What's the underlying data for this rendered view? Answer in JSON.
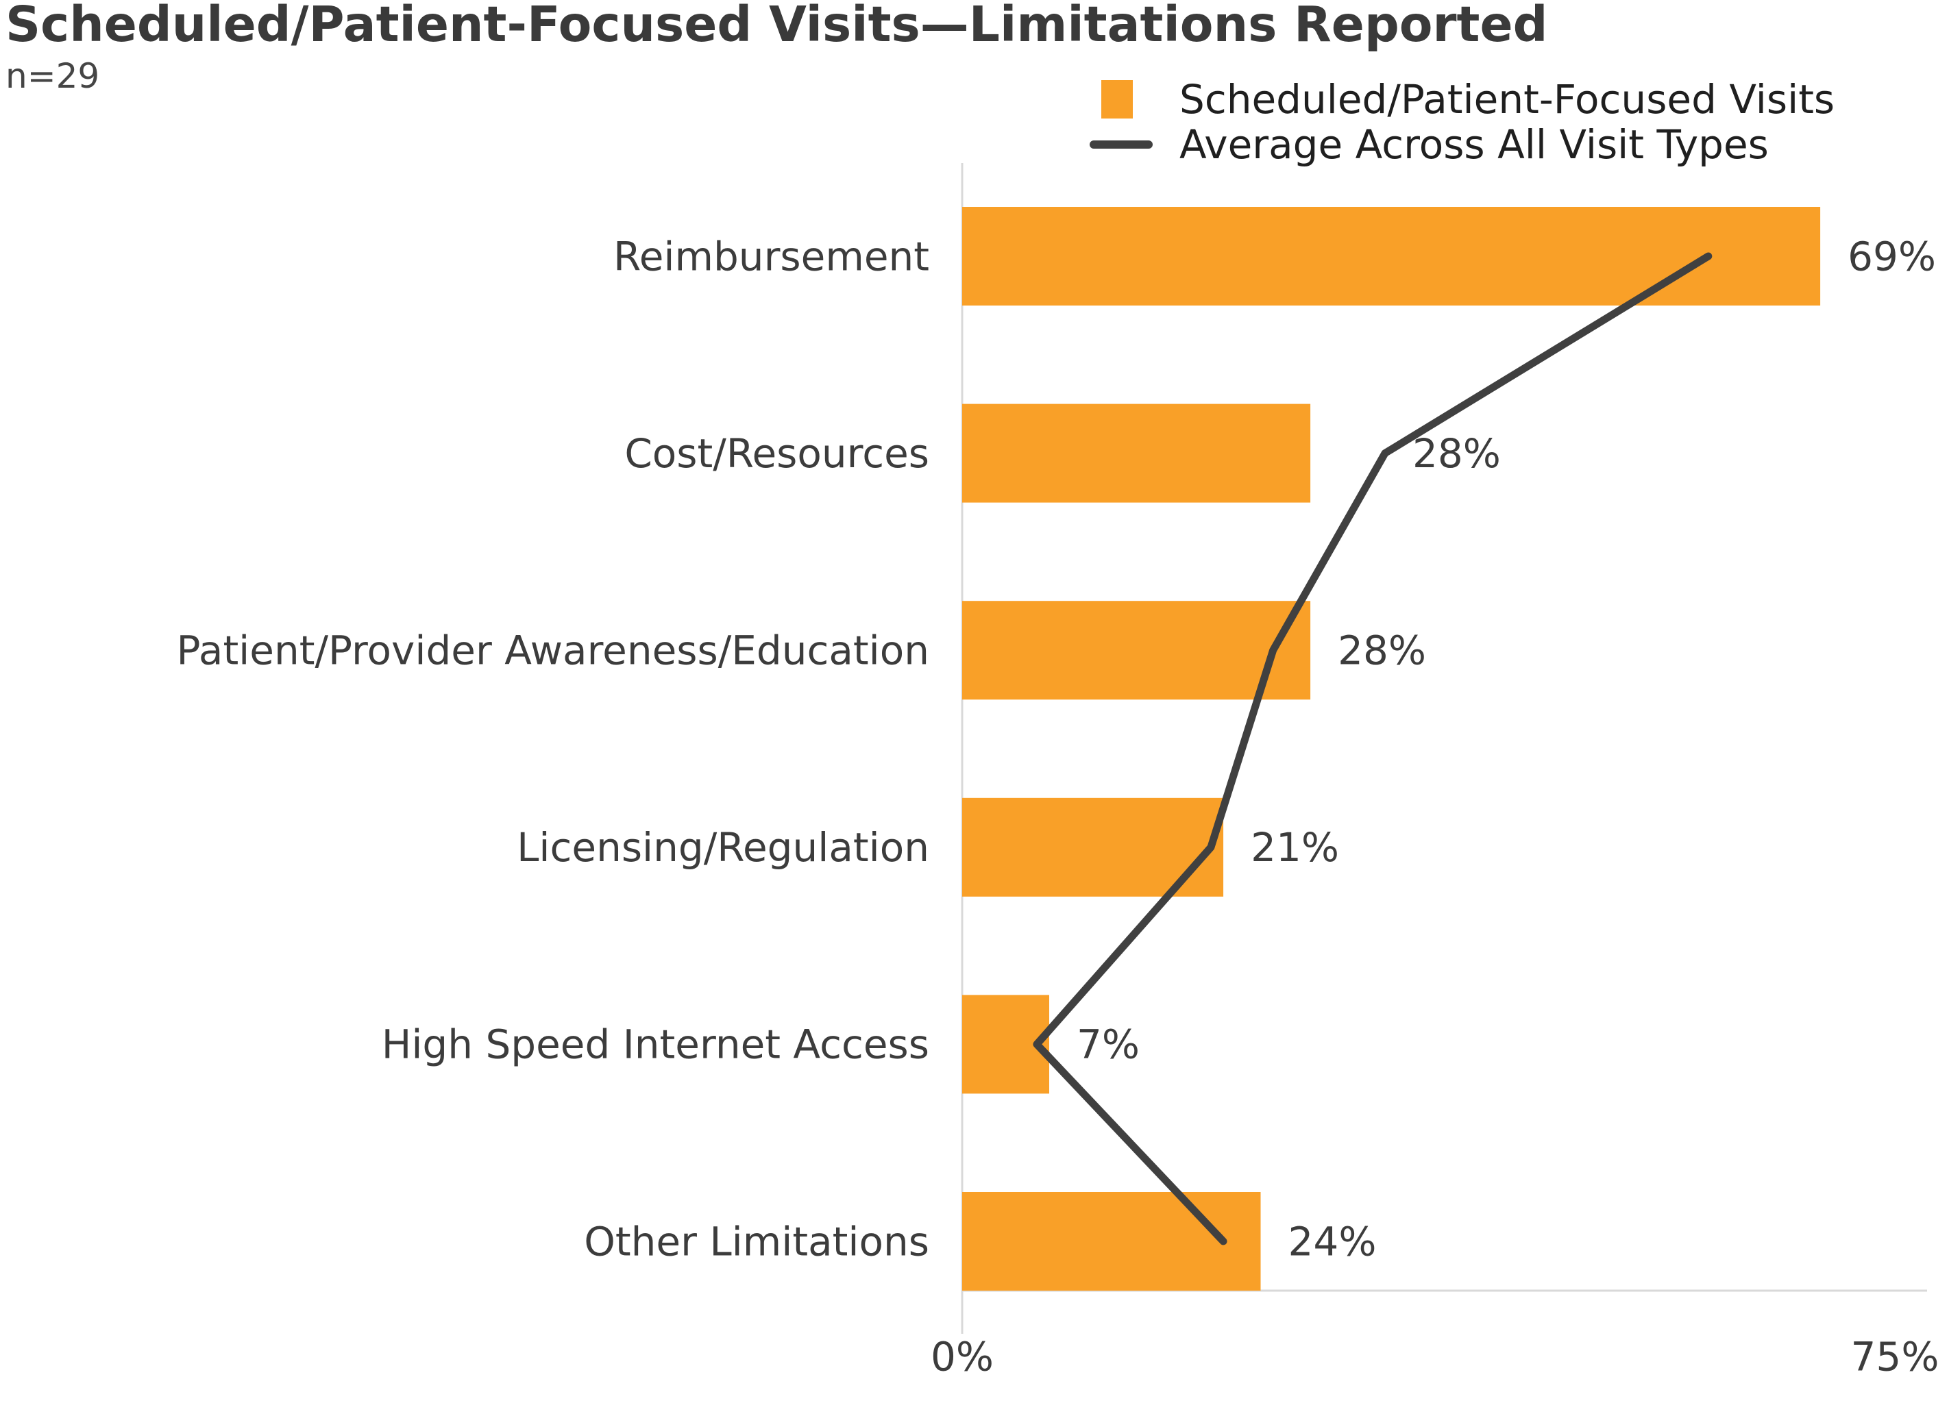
{
  "chart_data": {
    "type": "bar",
    "orientation": "horizontal",
    "title": "Scheduled/Patient-Focused Visits—Limitations Reported",
    "subtitle": "n=29",
    "categories": [
      "Reimbursement",
      "Cost/Resources",
      "Patient/Provider Awareness/Education",
      "Licensing/Regulation",
      "High Speed Internet Access",
      "Other Limitations"
    ],
    "series": [
      {
        "name": "Scheduled/Patient-Focused Visits",
        "type": "bar",
        "color": "#F9A028",
        "values": [
          69,
          28,
          28,
          21,
          7,
          24
        ],
        "labels": [
          "69%",
          "28%",
          "28%",
          "21%",
          "7%",
          "24%"
        ]
      },
      {
        "name": "Average Across All Visit Types",
        "type": "line",
        "color": "#404040",
        "values": [
          60,
          34,
          25,
          20,
          6,
          21
        ]
      }
    ],
    "xlim": [
      0,
      75
    ],
    "x_ticks": [
      "0%",
      "75%"
    ],
    "grid": false,
    "legend_position": "top-right",
    "colors": {
      "bar": "#F9A028",
      "line": "#404040",
      "axis": "#D9D9D9",
      "label_text": "#3C3C3C",
      "title_text": "#3A3A3A"
    }
  }
}
